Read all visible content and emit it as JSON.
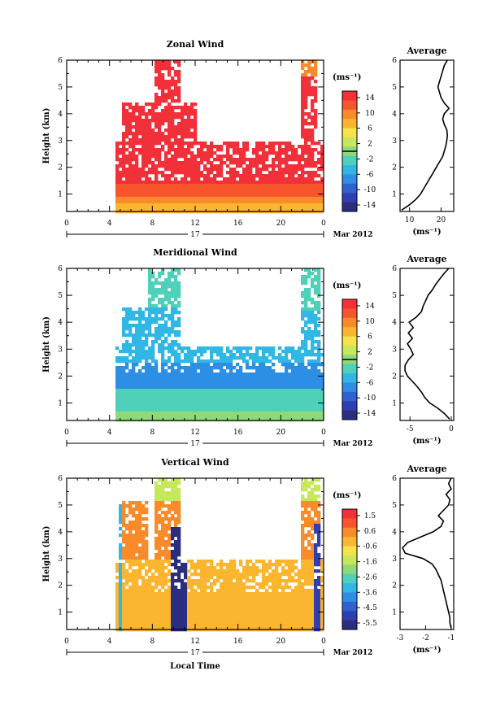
{
  "page": {
    "xlabel": "Local Time",
    "date_label": "Mar 2012",
    "day_label": "17"
  },
  "colorbar_colors": [
    "#f2303a",
    "#f8552d",
    "#fb8a2a",
    "#fbb52e",
    "#f6e24a",
    "#c7e85a",
    "#8fd97a",
    "#4fd0b8",
    "#31b7e6",
    "#2d8ee6",
    "#2f61d2",
    "#2f3fb0",
    "#2b2e80"
  ],
  "chart_data": [
    {
      "type": "heatmap",
      "title": "Zonal Wind",
      "ylabel": "Height (km)",
      "xlabel": "",
      "x_ticks": [
        "0",
        "4",
        "8",
        "12",
        "16",
        "20",
        "0"
      ],
      "x_range": [
        0,
        24
      ],
      "y_ticks": [
        "1",
        "2",
        "3",
        "4",
        "5",
        "6"
      ],
      "y_range": [
        0.35,
        6
      ],
      "unit": "(ms⁻¹)",
      "colorbar_ticks": [
        "14",
        "10",
        "6",
        "2",
        "-2",
        "-6",
        "-10",
        "-14"
      ],
      "colorbar_zero_line": true,
      "profile": {
        "title": "Average",
        "xlabel": "(ms⁻¹)",
        "x_ticks": [
          "10",
          "20"
        ],
        "x_tick_values": [
          10,
          20
        ],
        "x_range": [
          7,
          24
        ],
        "heights": [
          0.4,
          0.6,
          0.8,
          1.0,
          1.2,
          1.4,
          1.6,
          1.8,
          2.0,
          2.2,
          2.4,
          2.6,
          2.8,
          3.0,
          3.2,
          3.4,
          3.6,
          3.8,
          4.0,
          4.2,
          4.4,
          4.6,
          4.8,
          5.0,
          5.2,
          5.4,
          5.6,
          5.8,
          6.0
        ],
        "values": [
          7.5,
          10,
          12,
          13.5,
          14.5,
          15.5,
          16.5,
          17.5,
          18.5,
          19.5,
          20.5,
          21,
          21.5,
          21.8,
          22,
          21.8,
          21,
          20.5,
          21,
          22.5,
          21,
          20,
          19.5,
          19,
          19.5,
          20,
          20.5,
          21,
          22
        ]
      }
    },
    {
      "type": "heatmap",
      "title": "Meridional Wind",
      "ylabel": "Height (km)",
      "xlabel": "",
      "x_ticks": [
        "0",
        "4",
        "8",
        "12",
        "16",
        "20",
        "0"
      ],
      "x_range": [
        0,
        24
      ],
      "y_ticks": [
        "1",
        "2",
        "3",
        "4",
        "5",
        "6"
      ],
      "y_range": [
        0.35,
        6
      ],
      "unit": "(ms⁻¹)",
      "colorbar_ticks": [
        "14",
        "10",
        "6",
        "2",
        "-2",
        "-6",
        "-10",
        "-14"
      ],
      "colorbar_zero_line": true,
      "profile": {
        "title": "Average",
        "xlabel": "(ms⁻¹)",
        "x_ticks": [
          "-5",
          "0"
        ],
        "x_tick_values": [
          -5,
          0
        ],
        "x_range": [
          -6.2,
          0.3
        ],
        "heights": [
          0.4,
          0.6,
          0.8,
          1.0,
          1.2,
          1.4,
          1.6,
          1.8,
          2.0,
          2.2,
          2.4,
          2.6,
          2.8,
          3.0,
          3.2,
          3.4,
          3.6,
          3.8,
          4.0,
          4.2,
          4.4,
          4.6,
          4.8,
          5.0,
          5.2,
          5.4,
          5.6,
          5.8,
          6.0
        ],
        "values": [
          -0.2,
          -0.8,
          -1.6,
          -2.6,
          -3.2,
          -3.6,
          -4.1,
          -4.7,
          -5.3,
          -5.6,
          -5.6,
          -5.2,
          -4.6,
          -4.9,
          -5.3,
          -4.7,
          -5.2,
          -4.6,
          -5.1,
          -4.2,
          -3.6,
          -3.4,
          -3.1,
          -2.8,
          -2.3,
          -1.9,
          -1.4,
          -0.9,
          -0.3
        ]
      }
    },
    {
      "type": "heatmap",
      "title": "Vertical Wind",
      "ylabel": "Height (km)",
      "xlabel": "Local Time",
      "x_ticks": [
        "0",
        "4",
        "8",
        "12",
        "16",
        "20",
        "0"
      ],
      "x_range": [
        0,
        24
      ],
      "y_ticks": [
        "1",
        "2",
        "3",
        "4",
        "5",
        "6"
      ],
      "y_range": [
        0.35,
        6
      ],
      "unit": "(ms⁻¹)",
      "colorbar_ticks": [
        "1.5",
        "0.6",
        "-0.6",
        "-1.6",
        "-2.6",
        "-3.6",
        "-4.5",
        "-5.5"
      ],
      "colorbar_zero_line": false,
      "profile": {
        "title": "Average",
        "xlabel": "(ms⁻¹)",
        "x_ticks": [
          "-3",
          "-2",
          "-1"
        ],
        "x_tick_values": [
          -3,
          -2,
          -1
        ],
        "x_range": [
          -3,
          -0.9
        ],
        "heights": [
          0.4,
          0.6,
          0.8,
          1.0,
          1.2,
          1.4,
          1.6,
          1.8,
          2.0,
          2.2,
          2.4,
          2.6,
          2.8,
          3.0,
          3.2,
          3.4,
          3.6,
          3.8,
          4.0,
          4.2,
          4.4,
          4.6,
          4.8,
          5.0,
          5.2,
          5.4,
          5.6,
          5.8,
          6.0
        ],
        "values": [
          -1.0,
          -1.05,
          -1.05,
          -1.1,
          -1.15,
          -1.2,
          -1.25,
          -1.3,
          -1.35,
          -1.4,
          -1.5,
          -1.6,
          -1.75,
          -2.1,
          -2.8,
          -2.9,
          -2.7,
          -2.2,
          -1.7,
          -1.4,
          -1.3,
          -1.5,
          -1.3,
          -1.1,
          -1.05,
          -1.2,
          -1.0,
          -1.1,
          -1.0
        ]
      }
    }
  ]
}
